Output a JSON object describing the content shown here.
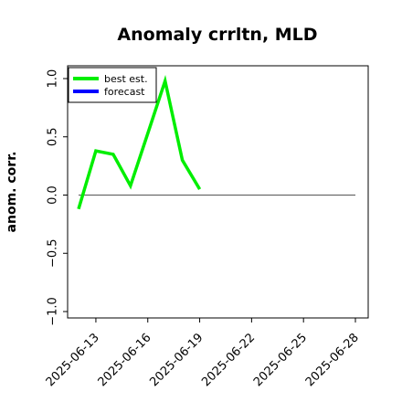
{
  "chart_data": {
    "type": "line",
    "title": "Anomaly crrltn, MLD",
    "ylabel": "anom. corr.",
    "xlabel": "",
    "ylim": [
      -1.0,
      1.0
    ],
    "yticks": [
      "−1.0",
      "−0.5",
      "0.0",
      "0.5",
      "1.0"
    ],
    "ytick_values": [
      -1.0,
      -0.5,
      0.0,
      0.5,
      1.0
    ],
    "xticks": [
      "2025-06-13",
      "2025-06-16",
      "2025-06-19",
      "2025-06-22",
      "2025-06-25",
      "2025-06-28"
    ],
    "highlighted_xtick": "2025-06-19",
    "highlight_color": "#228B22",
    "reference_line": 0.0,
    "legend_position": "upper-left",
    "series": [
      {
        "name": "best est.",
        "color": "#00ee00",
        "x": [
          "2025-06-12",
          "2025-06-13",
          "2025-06-14",
          "2025-06-15",
          "2025-06-16",
          "2025-06-17",
          "2025-06-18",
          "2025-06-19"
        ],
        "values": [
          -0.12,
          0.38,
          0.35,
          0.08,
          0.53,
          0.98,
          0.3,
          0.05
        ]
      },
      {
        "name": "forecast",
        "color": "#0000ff",
        "x": [],
        "values": []
      }
    ]
  }
}
